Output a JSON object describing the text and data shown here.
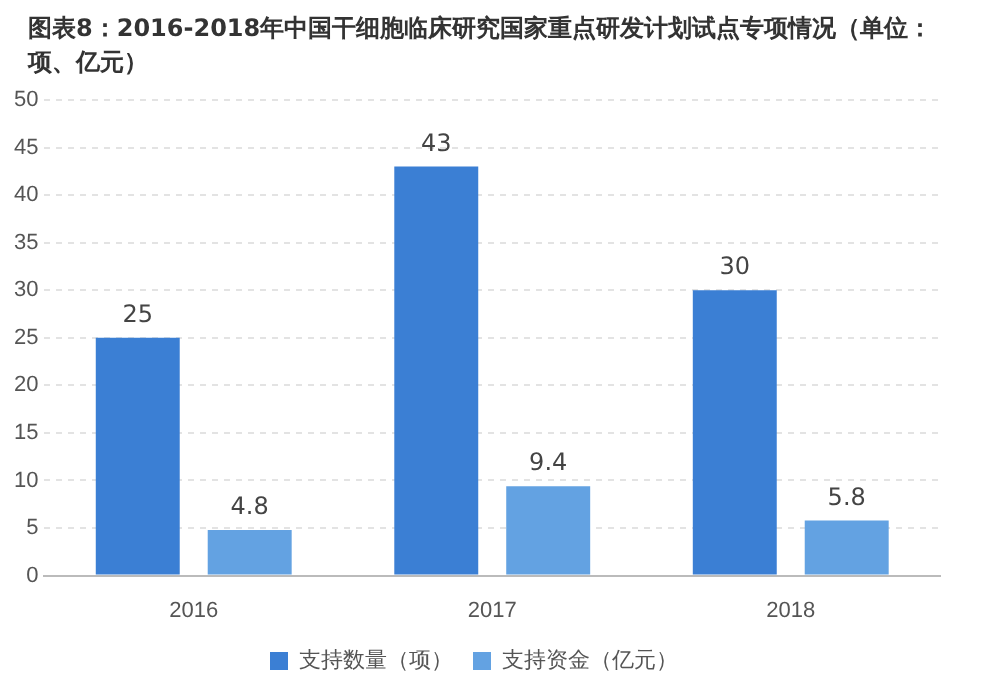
{
  "chart_data": {
    "type": "bar",
    "title": "图表8：2016-2018年中国干细胞临床研究国家重点研发计划试点专项情况（单位：项、亿元）",
    "categories": [
      "2016",
      "2017",
      "2018"
    ],
    "series": [
      {
        "name": "支持数量（项）",
        "color": "#3b7fd4",
        "values": [
          25,
          43,
          30
        ]
      },
      {
        "name": "支持资金（亿元）",
        "color": "#63a2e2",
        "values": [
          4.8,
          9.4,
          5.8
        ]
      }
    ],
    "ylim": [
      0,
      50
    ],
    "yticks": [
      0,
      5,
      10,
      15,
      20,
      25,
      30,
      35,
      40,
      45,
      50
    ],
    "grid": "y",
    "legend": "bottom",
    "data_labels": true
  }
}
